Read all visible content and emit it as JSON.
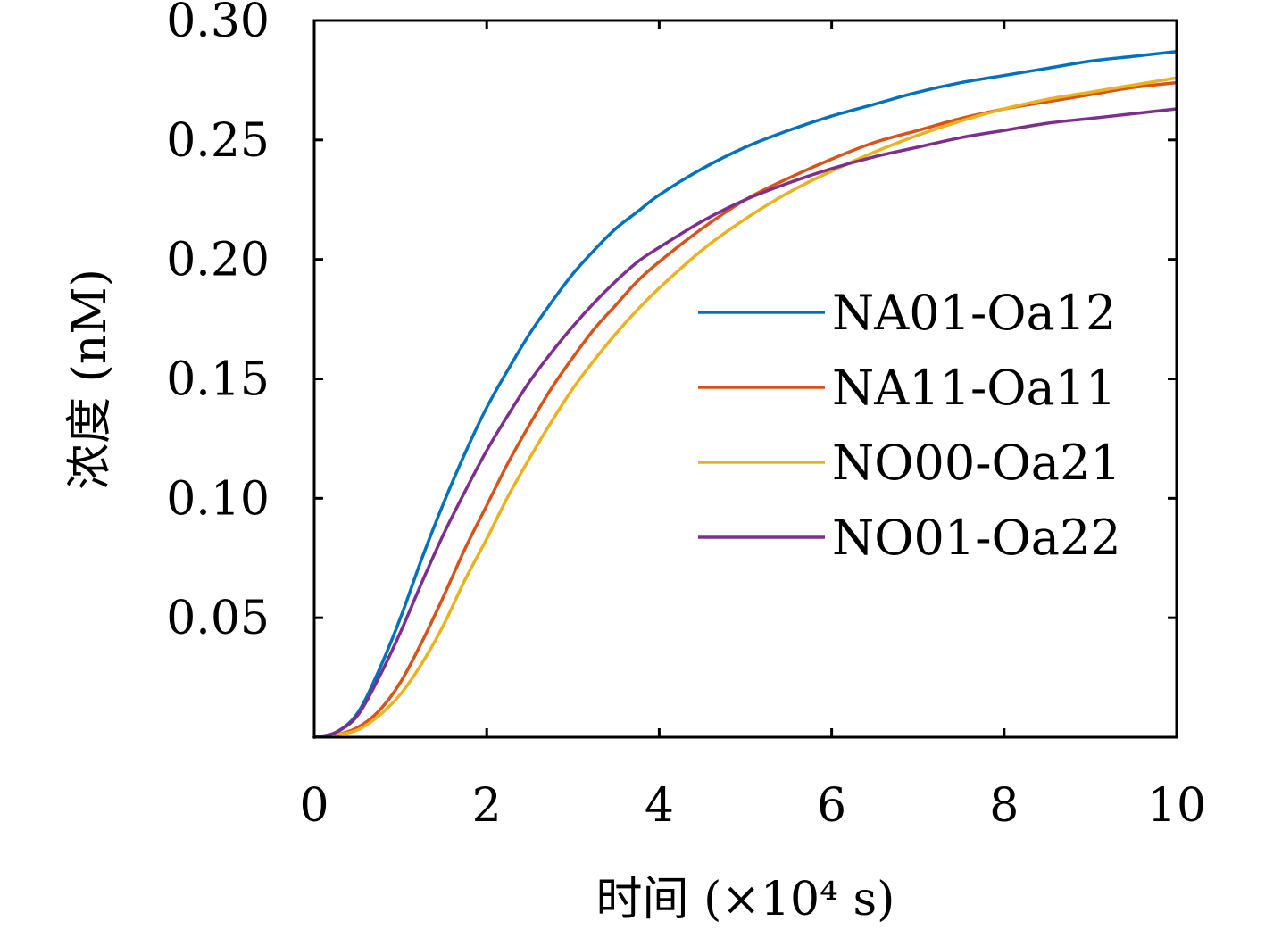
{
  "chart_data": {
    "type": "line",
    "xlabel": "时间 (×10⁴ s)",
    "ylabel": "浓度 (nM)",
    "xlim": [
      0,
      10
    ],
    "ylim": [
      0,
      0.3
    ],
    "x_ticks": [
      "0",
      "2",
      "4",
      "6",
      "8",
      "10"
    ],
    "y_ticks": [
      "0.05",
      "0.10",
      "0.15",
      "0.20",
      "0.25",
      "0.30"
    ],
    "grid": false,
    "legend_position": "center-right",
    "x": [
      0,
      0.25,
      0.5,
      0.75,
      1,
      1.25,
      1.5,
      1.75,
      2,
      2.25,
      2.5,
      2.75,
      3,
      3.25,
      3.5,
      3.75,
      4,
      4.5,
      5,
      5.5,
      6,
      6.5,
      7,
      7.5,
      8,
      8.5,
      9,
      9.5,
      10
    ],
    "series": [
      {
        "name": "NA01-Oa12",
        "color": "#0072BD",
        "values": [
          0,
          0.002,
          0.01,
          0.028,
          0.05,
          0.075,
          0.098,
          0.119,
          0.138,
          0.154,
          0.169,
          0.182,
          0.194,
          0.204,
          0.213,
          0.22,
          0.227,
          0.238,
          0.247,
          0.254,
          0.26,
          0.265,
          0.27,
          0.274,
          0.277,
          0.28,
          0.283,
          0.285,
          0.287
        ]
      },
      {
        "name": "NA11-Oa11",
        "color": "#D95319",
        "values": [
          0,
          0.001,
          0.004,
          0.011,
          0.023,
          0.04,
          0.059,
          0.079,
          0.097,
          0.115,
          0.131,
          0.146,
          0.159,
          0.171,
          0.181,
          0.191,
          0.199,
          0.213,
          0.225,
          0.234,
          0.242,
          0.249,
          0.254,
          0.259,
          0.263,
          0.266,
          0.269,
          0.272,
          0.274
        ]
      },
      {
        "name": "NO00-Oa21",
        "color": "#EDB120",
        "values": [
          0,
          0.001,
          0.003,
          0.009,
          0.018,
          0.031,
          0.047,
          0.066,
          0.083,
          0.101,
          0.117,
          0.132,
          0.146,
          0.158,
          0.169,
          0.179,
          0.188,
          0.204,
          0.217,
          0.228,
          0.237,
          0.245,
          0.252,
          0.258,
          0.263,
          0.267,
          0.27,
          0.273,
          0.276
        ]
      },
      {
        "name": "NO01-Oa22",
        "color": "#7E2F8E",
        "values": [
          0,
          0.002,
          0.009,
          0.025,
          0.044,
          0.065,
          0.085,
          0.103,
          0.12,
          0.135,
          0.149,
          0.161,
          0.172,
          0.182,
          0.191,
          0.199,
          0.205,
          0.216,
          0.225,
          0.232,
          0.238,
          0.243,
          0.247,
          0.251,
          0.254,
          0.257,
          0.259,
          0.261,
          0.263
        ]
      }
    ]
  }
}
